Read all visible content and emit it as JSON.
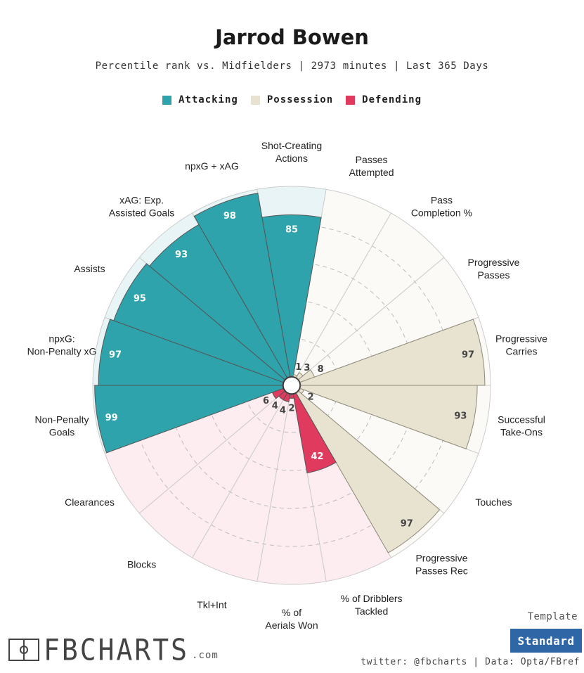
{
  "header": {
    "title": "Jarrod Bowen",
    "subtitle": "Percentile rank vs. Midfielders | 2973 minutes | Last 365 Days"
  },
  "legend": [
    {
      "label": "Attacking",
      "color": "#2ea3ac"
    },
    {
      "label": "Possession",
      "color": "#e8e2d0"
    },
    {
      "label": "Defending",
      "color": "#e03a5e"
    }
  ],
  "chart_data": {
    "type": "polar-bar",
    "title": "Jarrod Bowen",
    "subtitle": "Percentile rank vs. Midfielders | 2973 minutes | Last 365 Days",
    "rlim": [
      0,
      100
    ],
    "grid": true,
    "legend_position": "top",
    "colors": {
      "Attacking": "#2ea3ac",
      "Possession": "#e8e2d0",
      "Defending": "#e03a5e",
      "Attacking_bg": "#e8f4f5",
      "Possession_bg": "#fbfaf7",
      "Defending_bg": "#fdecf0"
    },
    "categories": [
      {
        "label": "Shot-Creating Actions",
        "value": 85,
        "group": "Attacking"
      },
      {
        "label": "Passes Attempted",
        "value": 1,
        "group": "Possession"
      },
      {
        "label": "Pass Completion %",
        "value": 3,
        "group": "Possession"
      },
      {
        "label": "Progressive Passes",
        "value": 8,
        "group": "Possession"
      },
      {
        "label": "Progressive Carries",
        "value": 97,
        "group": "Possession"
      },
      {
        "label": "Successful Take-Ons",
        "value": 93,
        "group": "Possession"
      },
      {
        "label": "Touches",
        "value": 2,
        "group": "Possession"
      },
      {
        "label": "Progressive Passes Rec",
        "value": 97,
        "group": "Possession"
      },
      {
        "label": "% of Dribblers Tackled",
        "value": 42,
        "group": "Defending"
      },
      {
        "label": "% of Aerials Won",
        "value": 2,
        "group": "Defending"
      },
      {
        "label": "Tkl+Int",
        "value": 4,
        "group": "Defending"
      },
      {
        "label": "Blocks",
        "value": 4,
        "group": "Defending"
      },
      {
        "label": "Clearances",
        "value": 6,
        "group": "Defending"
      },
      {
        "label": "Non-Penalty Goals",
        "value": 99,
        "group": "Attacking"
      },
      {
        "label": "npxG: Non-Penalty xG",
        "value": 97,
        "group": "Attacking"
      },
      {
        "label": "Assists",
        "value": 95,
        "group": "Attacking"
      },
      {
        "label": "xAG: Exp. Assisted Goals",
        "value": 93,
        "group": "Attacking"
      },
      {
        "label": "npxG + xAG",
        "value": 98,
        "group": "Attacking"
      }
    ]
  },
  "footer": {
    "logo_text": "FBCHARTS",
    "logo_suffix": ".com",
    "template_label": "Template",
    "template_value": "Standard",
    "credit": "twitter: @fbcharts | Data: Opta/FBref"
  }
}
